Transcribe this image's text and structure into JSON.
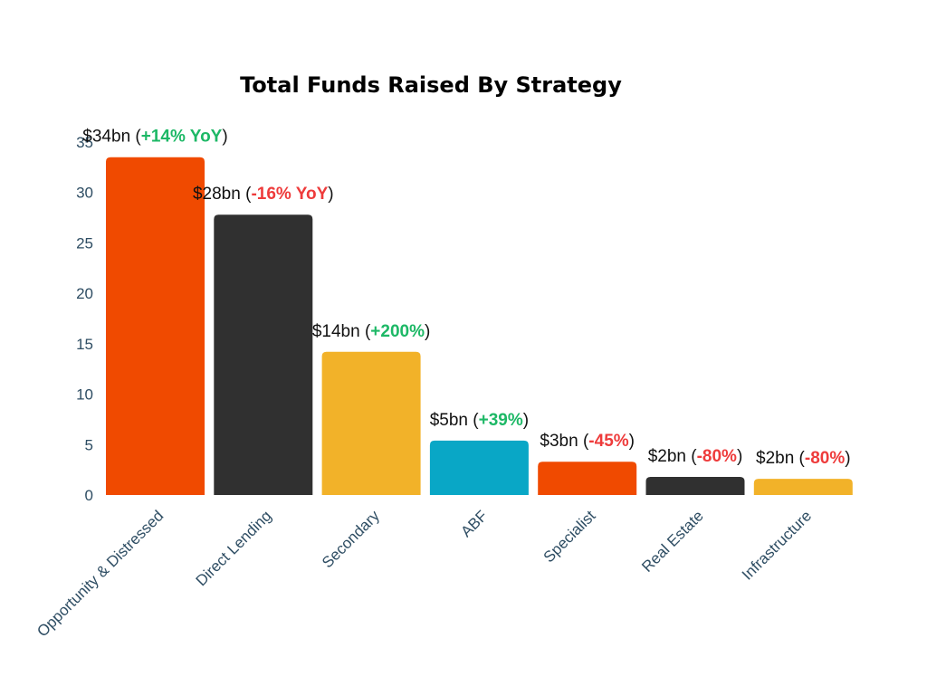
{
  "chart_data": {
    "type": "bar",
    "title": "Total Funds Raised By Strategy",
    "xlabel": "",
    "ylabel": "",
    "ylim": [
      0,
      35
    ],
    "yticks": [
      0,
      5,
      10,
      15,
      20,
      25,
      30,
      35
    ],
    "grid": false,
    "legend": "none",
    "categories": [
      "Opportunity & Distressed",
      "Direct Lending",
      "Secondary",
      "ABF",
      "Specialist",
      "Real Estate",
      "Infrastructure"
    ],
    "values": [
      33.5,
      27.8,
      14.2,
      5.4,
      3.3,
      1.8,
      1.6
    ],
    "bar_colors": [
      "#F04A00",
      "#303030",
      "#F2B229",
      "#09A7C6",
      "#F04A00",
      "#303030",
      "#F2B229"
    ],
    "data_labels": [
      {
        "amount": "$34bn",
        "delta": "+14% YoY",
        "sentiment": "positive"
      },
      {
        "amount": "$28bn",
        "delta": "-16% YoY",
        "sentiment": "negative"
      },
      {
        "amount": "$14bn",
        "delta": "+200%",
        "sentiment": "positive"
      },
      {
        "amount": "$5bn",
        "delta": "+39%",
        "sentiment": "positive"
      },
      {
        "amount": "$3bn",
        "delta": "-45%",
        "sentiment": "negative"
      },
      {
        "amount": "$2bn",
        "delta": "-80%",
        "sentiment": "negative"
      },
      {
        "amount": "$2bn",
        "delta": "-80%",
        "sentiment": "negative"
      }
    ],
    "sentiment_colors": {
      "positive": "#1DB866",
      "negative": "#EE3B3B"
    }
  }
}
